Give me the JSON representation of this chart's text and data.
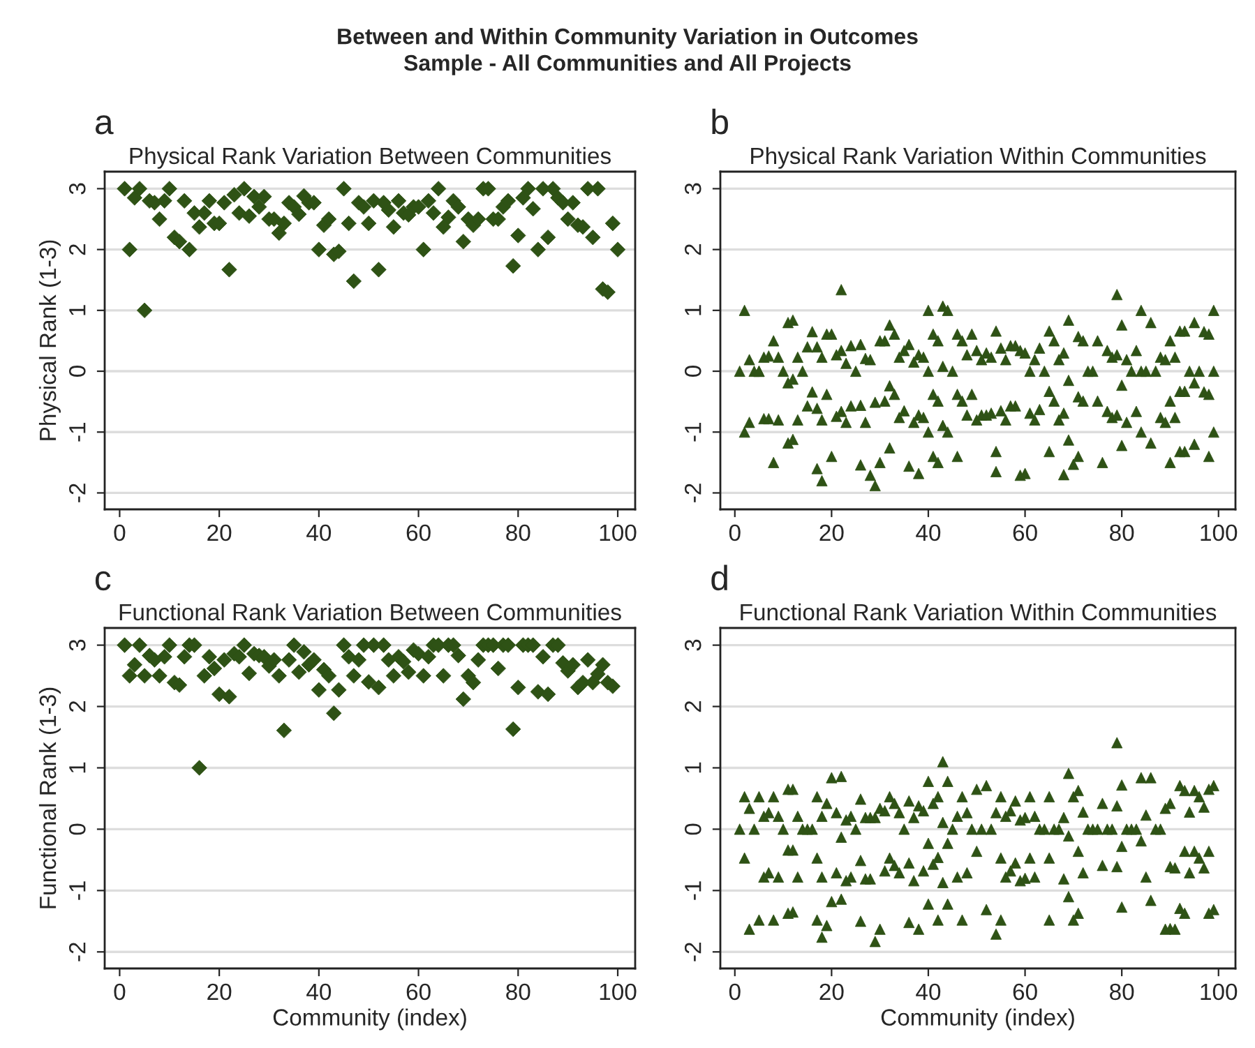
{
  "chart_data": [
    {
      "type": "scatter",
      "title": "Physical Rank Variation Between Communities",
      "ylabel": "Physical Rank (1-3)",
      "annotations": [
        "Between and Within Community Variation in Outcomes",
        "Sample - All Communities and All Projects",
        "a"
      ],
      "marker": "diamond",
      "grid": "y",
      "xlim": [
        -3,
        103.5
      ],
      "xticks": [
        0,
        20,
        40,
        60,
        80,
        100
      ],
      "ylim": [
        -2.27,
        3.28
      ],
      "yticks": [
        -2,
        -1,
        0,
        1,
        2,
        3
      ],
      "series": [
        {
          "color": "#2e5215",
          "x": [
            1,
            2,
            3,
            4,
            5,
            6,
            7,
            8,
            9,
            10,
            11,
            12,
            13,
            14,
            15,
            16,
            17,
            18,
            19,
            20,
            21,
            22,
            23,
            24,
            25,
            26,
            27,
            28,
            29,
            30,
            31,
            32,
            33,
            34,
            35,
            36,
            37,
            38,
            39,
            40,
            41,
            42,
            43,
            44,
            45,
            46,
            47,
            48,
            49,
            50,
            51,
            52,
            53,
            54,
            55,
            56,
            57,
            58,
            59,
            60,
            61,
            62,
            63,
            64,
            65,
            66,
            67,
            68,
            69,
            70,
            71,
            72,
            73,
            74,
            75,
            76,
            77,
            78,
            79,
            80,
            81,
            82,
            83,
            84,
            85,
            86,
            87,
            88,
            89,
            90,
            91,
            92,
            93,
            94,
            95,
            96,
            97,
            98,
            99,
            100
          ],
          "values": [
            3,
            2,
            2.85,
            3,
            1,
            2.8,
            2.77,
            2.5,
            2.8,
            3,
            2.2,
            2.13,
            2.8,
            2,
            2.6,
            2.37,
            2.6,
            2.8,
            2.43,
            2.43,
            2.77,
            1.67,
            2.9,
            2.6,
            3,
            2.55,
            2.87,
            2.7,
            2.87,
            2.5,
            2.5,
            2.27,
            2.43,
            2.77,
            2.7,
            2.58,
            2.88,
            2.77,
            2.77,
            2,
            2.4,
            2.5,
            1.92,
            1.97,
            3,
            2.43,
            1.48,
            2.77,
            2.7,
            2.43,
            2.8,
            1.67,
            2.77,
            2.65,
            2.37,
            2.8,
            2.6,
            2.57,
            2.7,
            2.7,
            2,
            2.8,
            2.6,
            3,
            2.37,
            2.53,
            2.8,
            2.7,
            2.13,
            2.5,
            2.4,
            2.5,
            3,
            3,
            2.5,
            2.5,
            2.7,
            2.8,
            1.73,
            2.23,
            2.85,
            3,
            2.67,
            2,
            3,
            2.2,
            3,
            2.85,
            2.77,
            2.5,
            2.77,
            2.4,
            2.37,
            3,
            2.2,
            3,
            1.35,
            1.3,
            2.43,
            2
          ]
        }
      ]
    },
    {
      "type": "scatter",
      "title": "Physical Rank Variation Within Communities",
      "annotations": [
        "b"
      ],
      "marker": "triangle",
      "grid": "y",
      "xlim": [
        -3,
        103.5
      ],
      "xticks": [
        0,
        20,
        40,
        60,
        80,
        100
      ],
      "ylim": [
        -2.27,
        3.28
      ],
      "yticks": [
        -2,
        -1,
        0,
        1,
        2,
        3
      ],
      "series": [
        {
          "color": "#2e5215",
          "x": [
            1,
            2,
            2,
            3,
            3,
            4,
            5,
            5,
            6,
            6,
            7,
            7,
            8,
            8,
            9,
            9,
            10,
            11,
            11,
            11,
            12,
            12,
            12,
            13,
            13,
            14,
            15,
            15,
            16,
            16,
            17,
            17,
            17,
            18,
            18,
            18,
            19,
            19,
            20,
            20,
            21,
            21,
            22,
            22,
            22,
            23,
            23,
            24,
            24,
            25,
            26,
            26,
            26,
            27,
            27,
            28,
            28,
            29,
            29,
            30,
            30,
            31,
            31,
            32,
            32,
            32,
            33,
            33,
            34,
            34,
            35,
            35,
            36,
            36,
            37,
            37,
            38,
            38,
            38,
            39,
            39,
            40,
            40,
            40,
            41,
            41,
            41,
            42,
            42,
            42,
            43,
            43,
            43,
            44,
            44,
            45,
            46,
            46,
            46,
            47,
            47,
            48,
            48,
            49,
            49,
            50,
            50,
            51,
            51,
            52,
            52,
            53,
            53,
            54,
            54,
            54,
            55,
            55,
            56,
            56,
            57,
            57,
            58,
            58,
            59,
            59,
            60,
            60,
            61,
            61,
            62,
            62,
            63,
            63,
            64,
            65,
            65,
            65,
            66,
            66,
            67,
            67,
            68,
            68,
            68,
            69,
            69,
            69,
            70,
            71,
            71,
            71,
            72,
            72,
            73,
            74,
            75,
            75,
            76,
            77,
            77,
            78,
            78,
            79,
            79,
            79,
            80,
            80,
            80,
            81,
            81,
            82,
            83,
            83,
            84,
            84,
            84,
            85,
            86,
            86,
            87,
            88,
            88,
            89,
            89,
            90,
            90,
            90,
            91,
            91,
            92,
            92,
            92,
            93,
            93,
            93,
            94,
            95,
            95,
            95,
            96,
            97,
            97,
            98,
            98,
            98,
            99,
            99,
            99
          ],
          "values": [
            0,
            1,
            -1,
            0.19,
            -0.84,
            0,
            0,
            0,
            0.23,
            -0.78,
            0.25,
            -0.78,
            0.5,
            -1.5,
            0.23,
            -0.8,
            0,
            -0.19,
            0.8,
            -1.18,
            0.84,
            -0.13,
            -1.12,
            0.23,
            -0.8,
            0,
            0.4,
            -0.57,
            0.65,
            -0.34,
            -1.6,
            -0.61,
            0.4,
            -1.8,
            0.23,
            -0.8,
            0.61,
            -0.38,
            0.61,
            -1.4,
            0.27,
            -0.74,
            1.34,
            0.34,
            -0.66,
            0.13,
            -0.84,
            0.42,
            -0.57,
            0,
            0.44,
            -0.56,
            -1.54,
            -0.84,
            0.21,
            -1.71,
            0.19,
            -1.88,
            -0.51,
            0.5,
            -1.5,
            0.5,
            -0.49,
            0.76,
            -0.24,
            -1.26,
            0.61,
            -0.38,
            0.23,
            -0.76,
            0.34,
            -0.65,
            0.44,
            -1.56,
            0.15,
            -0.84,
            -1.68,
            0.27,
            -0.72,
            0.23,
            -0.76,
            1,
            0,
            -1,
            0.61,
            -0.38,
            -1.4,
            0.5,
            -0.49,
            -1.5,
            1.07,
            0.08,
            -0.89,
            1,
            -1,
            0,
            0.61,
            -0.38,
            -1.4,
            0.5,
            -0.49,
            0.27,
            -0.72,
            0.61,
            -0.38,
            0.34,
            -0.8,
            0.19,
            -0.72,
            0.3,
            -0.72,
            0.23,
            -0.69,
            0.66,
            -1.32,
            -1.65,
            0.38,
            -0.65,
            0.19,
            -0.8,
            0.42,
            -0.57,
            0.42,
            -0.57,
            0.34,
            -1.71,
            0.3,
            -1.68,
            0,
            -0.69,
            0.19,
            -0.8,
            0.38,
            -0.63,
            0,
            0.66,
            -0.33,
            -1.32,
            0.5,
            -0.49,
            0.19,
            -0.8,
            0.3,
            -0.69,
            -1.7,
            0.84,
            -0.15,
            -1.13,
            -1.53,
            0.57,
            -0.42,
            -1.4,
            0.5,
            -0.49,
            0,
            0,
            0.5,
            -0.49,
            -1.5,
            0.34,
            -0.66,
            0.23,
            -0.76,
            1.26,
            0.27,
            -0.72,
            0.76,
            -0.23,
            -1.22,
            0.19,
            -0.84,
            0,
            0.34,
            -0.66,
            1,
            0,
            -1,
            0,
            0.8,
            -1.18,
            0,
            0.23,
            -0.76,
            0.19,
            -0.84,
            0.5,
            -0.49,
            -1.5,
            0.23,
            -0.76,
            0.66,
            -0.33,
            -1.32,
            0.66,
            -0.33,
            -1.32,
            0,
            0.8,
            -0.19,
            -1.2,
            0,
            0.65,
            -0.34,
            0.61,
            -0.38,
            -1.4,
            1,
            0,
            -1
          ]
        }
      ]
    },
    {
      "type": "scatter",
      "title": "Functional Rank Variation Between Communities",
      "xlabel": "Community (index)",
      "ylabel": "Functional Rank (1-3)",
      "annotations": [
        "c"
      ],
      "marker": "diamond",
      "grid": "y",
      "xlim": [
        -3,
        103.5
      ],
      "xticks": [
        0,
        20,
        40,
        60,
        80,
        100
      ],
      "ylim": [
        -2.27,
        3.28
      ],
      "yticks": [
        -2,
        -1,
        0,
        1,
        2,
        3
      ],
      "series": [
        {
          "color": "#2e5215",
          "x": [
            1,
            2,
            3,
            4,
            5,
            6,
            7,
            8,
            9,
            10,
            11,
            12,
            13,
            14,
            15,
            16,
            17,
            18,
            19,
            20,
            21,
            22,
            23,
            24,
            25,
            26,
            27,
            28,
            29,
            30,
            31,
            32,
            33,
            34,
            35,
            36,
            37,
            38,
            39,
            40,
            41,
            42,
            43,
            44,
            45,
            46,
            47,
            48,
            49,
            50,
            51,
            52,
            53,
            54,
            55,
            56,
            57,
            58,
            59,
            60,
            61,
            62,
            63,
            64,
            65,
            66,
            67,
            68,
            69,
            70,
            71,
            72,
            73,
            74,
            75,
            76,
            77,
            78,
            79,
            80,
            81,
            82,
            83,
            84,
            85,
            86,
            87,
            88,
            89,
            90,
            91,
            92,
            93,
            94,
            95,
            96,
            97,
            98,
            99
          ],
          "values": [
            3,
            2.5,
            2.68,
            3,
            2.5,
            2.83,
            2.76,
            2.5,
            2.81,
            3,
            2.39,
            2.35,
            2.81,
            3,
            3,
            1,
            2.5,
            2.81,
            2.62,
            2.2,
            2.76,
            2.16,
            2.86,
            2.81,
            3,
            2.54,
            2.86,
            2.83,
            2.81,
            2.66,
            2.76,
            2.5,
            1.61,
            2.76,
            3,
            2.56,
            2.89,
            2.68,
            2.76,
            2.27,
            2.6,
            2.5,
            1.89,
            2.27,
            3,
            2.81,
            2.5,
            2.76,
            3,
            2.4,
            3,
            2.31,
            3,
            2.76,
            2.5,
            2.81,
            2.73,
            2.56,
            2.92,
            2.86,
            2.5,
            2.81,
            3,
            3,
            2.5,
            3,
            3,
            2.83,
            2.12,
            2.5,
            2.39,
            2.76,
            3,
            3,
            3,
            2.62,
            3,
            3,
            1.63,
            2.31,
            3,
            3,
            3,
            2.24,
            2.81,
            2.2,
            3,
            3,
            2.71,
            2.58,
            2.68,
            2.31,
            2.39,
            2.76,
            2.39,
            2.53,
            2.68,
            2.39,
            2.33
          ]
        }
      ]
    },
    {
      "type": "scatter",
      "title": "Functional Rank Variation Within Communities",
      "xlabel": "Community (index)",
      "annotations": [
        "d"
      ],
      "marker": "triangle",
      "grid": "y",
      "xlim": [
        -3,
        103.5
      ],
      "xticks": [
        0,
        20,
        40,
        60,
        80,
        100
      ],
      "ylim": [
        -2.27,
        3.28
      ],
      "yticks": [
        -2,
        -1,
        0,
        1,
        2,
        3
      ],
      "series": [
        {
          "color": "#2e5215",
          "x": [
            1,
            2,
            2,
            3,
            3,
            4,
            5,
            5,
            6,
            6,
            7,
            7,
            8,
            8,
            9,
            9,
            10,
            11,
            11,
            11,
            12,
            12,
            12,
            13,
            13,
            14,
            15,
            16,
            17,
            17,
            17,
            18,
            18,
            18,
            19,
            19,
            20,
            20,
            21,
            21,
            22,
            22,
            22,
            23,
            23,
            24,
            24,
            25,
            26,
            26,
            26,
            27,
            27,
            28,
            28,
            29,
            29,
            30,
            30,
            31,
            31,
            32,
            32,
            33,
            33,
            34,
            34,
            35,
            36,
            36,
            36,
            37,
            37,
            38,
            38,
            39,
            39,
            40,
            40,
            40,
            41,
            41,
            42,
            42,
            42,
            43,
            43,
            43,
            44,
            44,
            44,
            45,
            46,
            46,
            47,
            47,
            48,
            48,
            49,
            50,
            50,
            51,
            52,
            52,
            53,
            54,
            54,
            55,
            55,
            55,
            56,
            56,
            57,
            57,
            58,
            58,
            59,
            59,
            60,
            60,
            61,
            61,
            62,
            62,
            63,
            64,
            65,
            65,
            65,
            66,
            67,
            68,
            68,
            69,
            69,
            69,
            70,
            70,
            71,
            71,
            71,
            72,
            72,
            73,
            74,
            75,
            76,
            76,
            77,
            78,
            79,
            79,
            79,
            80,
            80,
            80,
            81,
            82,
            83,
            84,
            84,
            85,
            85,
            86,
            86,
            87,
            88,
            89,
            89,
            90,
            90,
            90,
            91,
            91,
            92,
            92,
            93,
            93,
            93,
            94,
            94,
            95,
            95,
            96,
            96,
            97,
            97,
            98,
            98,
            98,
            99,
            99
          ],
          "values": [
            0,
            0.53,
            -0.47,
            0.34,
            -1.63,
            0,
            0.53,
            -1.48,
            0.21,
            -0.78,
            0.27,
            -0.71,
            0.53,
            -1.48,
            0.21,
            -0.78,
            0,
            0.65,
            -0.34,
            -1.37,
            0.65,
            -0.34,
            -1.35,
            0.21,
            -0.78,
            0,
            0,
            0,
            0.53,
            -0.47,
            -1.48,
            0.21,
            -0.78,
            -1.76,
            0.42,
            -1.57,
            0.84,
            -1.18,
            0.27,
            -0.71,
            0.86,
            -0.13,
            -1.14,
            0.15,
            -0.84,
            0.21,
            -0.78,
            0,
            0.49,
            -0.51,
            -1.5,
            0.19,
            -0.81,
            0.19,
            -0.81,
            0.19,
            -1.83,
            0.34,
            -1.63,
            0.3,
            -0.68,
            0.53,
            -0.47,
            0.42,
            -0.59,
            0.27,
            -0.71,
            0,
            0.46,
            -0.55,
            -1.52,
            0.19,
            -0.84,
            0.38,
            -1.63,
            0.3,
            -0.68,
            0.78,
            -0.23,
            -1.22,
            0.42,
            -0.57,
            0.53,
            -0.46,
            -1.48,
            1.1,
            0.11,
            -0.87,
            0.78,
            -0.23,
            -1.22,
            0,
            0.21,
            -0.78,
            0.53,
            -1.48,
            0.27,
            -0.71,
            0,
            0.65,
            -0.36,
            0,
            0.71,
            -1.31,
            0,
            0.27,
            -1.71,
            0.53,
            -0.47,
            -1.48,
            0.21,
            -0.78,
            0.3,
            -0.68,
            0.46,
            -0.55,
            0.15,
            -0.84,
            0.19,
            -0.8,
            0.53,
            -0.47,
            0.21,
            -0.78,
            0,
            0,
            0.53,
            -0.47,
            -1.48,
            0,
            0,
            0.19,
            -0.81,
            0.91,
            -0.11,
            -1.1,
            0.53,
            -1.48,
            0.63,
            -0.36,
            -1.37,
            0.28,
            -0.71,
            0,
            0,
            0,
            0.42,
            -0.59,
            0,
            0,
            1.41,
            0.38,
            -0.61,
            0.72,
            -0.28,
            -1.27,
            0,
            0,
            0,
            0.84,
            -0.19,
            0.23,
            -0.78,
            0.84,
            -1.16,
            0,
            0,
            0.34,
            -1.63,
            0.42,
            -0.61,
            -1.62,
            -1.63,
            -0.63,
            0.71,
            -1.29,
            0.63,
            -0.36,
            -1.37,
            0.28,
            -0.71,
            0.63,
            -0.36,
            0.53,
            -0.47,
            0.36,
            -0.63,
            0.65,
            -0.36,
            -1.37,
            0.71,
            -1.31
          ]
        }
      ]
    }
  ]
}
